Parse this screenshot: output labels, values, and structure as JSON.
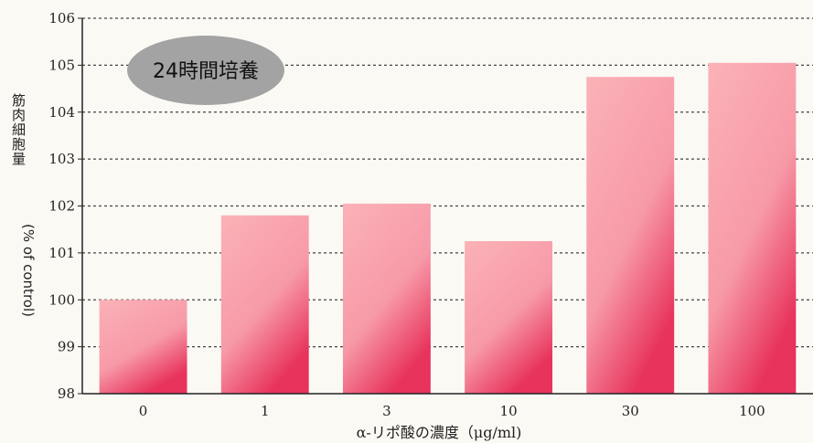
{
  "chart_data": {
    "type": "bar",
    "categories": [
      "0",
      "1",
      "3",
      "10",
      "30",
      "100"
    ],
    "values": [
      100.0,
      101.8,
      102.05,
      101.25,
      104.75,
      105.05
    ],
    "ylabel_jp": "筋肉細胞量",
    "ylabel_unit": "(% of control)",
    "xlabel": "α-リポ酸の濃度（μg/ml)",
    "yticks": [
      "98",
      "99",
      "100",
      "101",
      "102",
      "103",
      "104",
      "105",
      "106"
    ],
    "ylim": [
      98,
      106
    ],
    "grid": true,
    "badge": "24時間培養",
    "colors": {
      "bar_top": "#fbb2b7",
      "bar_bottom": "#e8335c",
      "grid": "#444444"
    }
  }
}
